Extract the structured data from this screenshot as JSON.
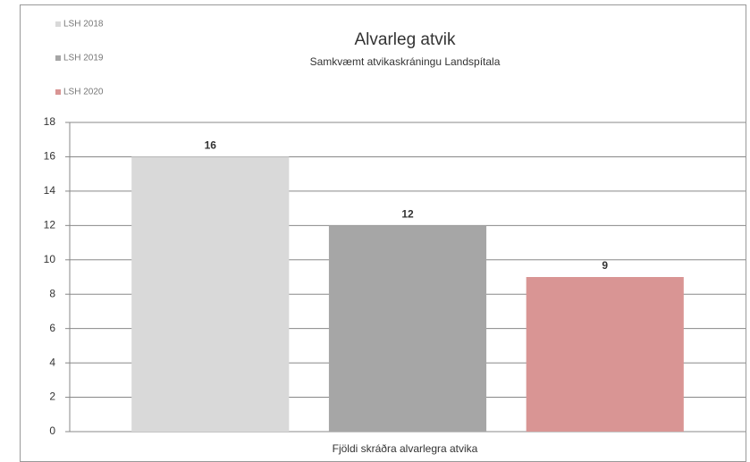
{
  "chart_data": {
    "type": "bar",
    "title": "Alvarleg atvik",
    "subtitle": "Samkvæmt atvikaskráningu Landspítala",
    "x_label": "Fjöldi skráðra alvarlegra atvika",
    "categories": [
      null
    ],
    "series": [
      {
        "name": "LSH 2018",
        "color": "#d9d9d9",
        "values": [
          16
        ]
      },
      {
        "name": "LSH 2019",
        "color": "#a6a6a6",
        "values": [
          12
        ]
      },
      {
        "name": "LSH 2020",
        "color": "#d99594",
        "values": [
          9
        ]
      }
    ],
    "ylim": [
      0,
      18
    ],
    "yticks": [
      0,
      2,
      4,
      6,
      8,
      10,
      12,
      14,
      16,
      18
    ],
    "grid": true,
    "legend": "top-left"
  }
}
